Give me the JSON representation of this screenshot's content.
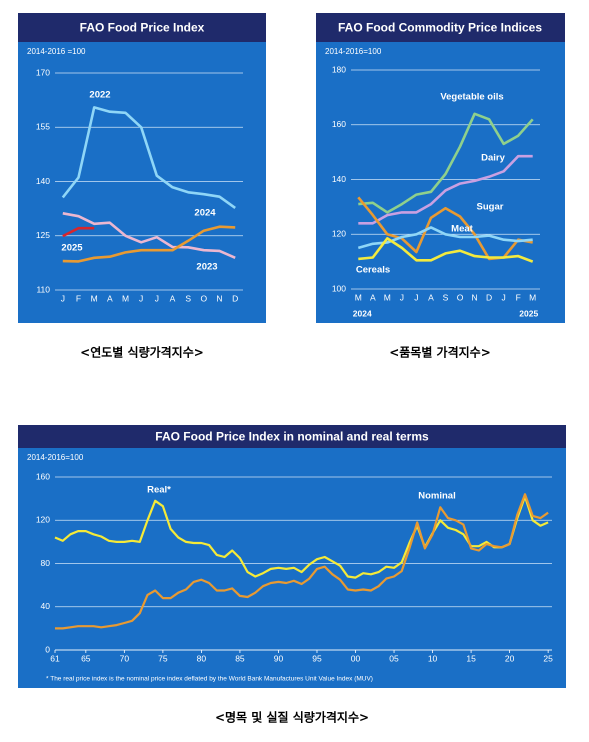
{
  "chart_data": [
    {
      "type": "line",
      "title": "FAO Food Price Index",
      "subtitle": "2014-2016 =100",
      "caption": "<연도별 식량가격지수>",
      "categories": [
        "J",
        "F",
        "M",
        "A",
        "M",
        "J",
        "J",
        "A",
        "S",
        "O",
        "N",
        "D"
      ],
      "ylim": [
        110,
        170
      ],
      "yticks": [
        110,
        125,
        140,
        155,
        170
      ],
      "grid": true,
      "series": [
        {
          "name": "2022",
          "color": "#8fd6f7",
          "values": [
            135.6,
            141.1,
            160.5,
            159.3,
            159.0,
            155.0,
            141.6,
            138.4,
            137.0,
            136.5,
            135.8,
            132.7
          ]
        },
        {
          "name": "2023",
          "color": "#ecb7d0",
          "values": [
            131.2,
            130.4,
            128.3,
            128.6,
            125.0,
            123.2,
            124.6,
            121.9,
            121.8,
            121.0,
            120.8,
            118.9
          ]
        },
        {
          "name": "2024",
          "color": "#e89a32",
          "values": [
            118.0,
            117.9,
            118.9,
            119.2,
            120.4,
            121.0,
            121.0,
            121.0,
            123.6,
            126.4,
            127.5,
            127.3
          ]
        },
        {
          "name": "2025",
          "color": "#d8262c",
          "values": [
            124.9,
            127.1,
            127.1,
            null,
            null,
            null,
            null,
            null,
            null,
            null,
            null,
            null
          ]
        }
      ]
    },
    {
      "type": "line",
      "title": "FAO Food Commodity Price Indices",
      "subtitle": "2014-2016=100",
      "caption": "<품목별 가격지수>",
      "categories": [
        "M",
        "A",
        "M",
        "J",
        "J",
        "A",
        "S",
        "O",
        "N",
        "D",
        "J",
        "F",
        "M"
      ],
      "year_labels": [
        "2024",
        "2025"
      ],
      "ylim": [
        100,
        180
      ],
      "yticks": [
        100,
        120,
        140,
        160,
        180
      ],
      "grid": true,
      "series": [
        {
          "name": "Vegetable oils",
          "color": "#8fd08c",
          "values": [
            131,
            131.5,
            128,
            131,
            134.5,
            135.5,
            142,
            152,
            164,
            162,
            153,
            156,
            162
          ]
        },
        {
          "name": "Dairy",
          "color": "#c9a0e2",
          "values": [
            124,
            124,
            127,
            128,
            128,
            131,
            136,
            138.5,
            139.5,
            141,
            143,
            148.5,
            148.5
          ]
        },
        {
          "name": "Sugar",
          "color": "#e89a32",
          "values": [
            133.5,
            127,
            120,
            118.5,
            113.5,
            126,
            129.5,
            126.5,
            120,
            111,
            111.5,
            118,
            117
          ]
        },
        {
          "name": "Meat",
          "color": "#8fd6f7",
          "values": [
            115,
            116.5,
            117,
            119,
            120,
            122.5,
            120,
            119,
            119,
            119.5,
            118,
            117.5,
            118
          ]
        },
        {
          "name": "Cereals",
          "color": "#f3ea3e",
          "values": [
            111,
            111.5,
            118.5,
            115,
            110.5,
            110.5,
            113,
            114,
            112,
            111.5,
            111.5,
            112,
            110
          ]
        }
      ]
    },
    {
      "type": "line",
      "title": "FAO Food Price Index in nominal and real terms",
      "subtitle": "2014-2016=100",
      "caption": "<명목 및 실질 식량가격지수>",
      "footnote": "* The real price index is the nominal price index deflated by the World Bank Manufactures Unit Value Index (MUV)",
      "x": [
        1961,
        1962,
        1963,
        1964,
        1965,
        1966,
        1967,
        1968,
        1969,
        1970,
        1971,
        1972,
        1973,
        1974,
        1975,
        1976,
        1977,
        1978,
        1979,
        1980,
        1981,
        1982,
        1983,
        1984,
        1985,
        1986,
        1987,
        1988,
        1989,
        1990,
        1991,
        1992,
        1993,
        1994,
        1995,
        1996,
        1997,
        1998,
        1999,
        2000,
        2001,
        2002,
        2003,
        2004,
        2005,
        2006,
        2007,
        2008,
        2009,
        2010,
        2011,
        2012,
        2013,
        2014,
        2015,
        2016,
        2017,
        2018,
        2019,
        2020,
        2021,
        2022,
        2023,
        2024,
        2025
      ],
      "xlim": [
        1961,
        2025.5
      ],
      "xticks": [
        {
          "value": 1961,
          "label": "61"
        },
        {
          "value": 1965,
          "label": "65"
        },
        {
          "value": 1970,
          "label": "70"
        },
        {
          "value": 1975,
          "label": "75"
        },
        {
          "value": 1980,
          "label": "80"
        },
        {
          "value": 1985,
          "label": "85"
        },
        {
          "value": 1990,
          "label": "90"
        },
        {
          "value": 1995,
          "label": "95"
        },
        {
          "value": 2000,
          "label": "00"
        },
        {
          "value": 2005,
          "label": "05"
        },
        {
          "value": 2010,
          "label": "10"
        },
        {
          "value": 2015,
          "label": "15"
        },
        {
          "value": 2020,
          "label": "20"
        },
        {
          "value": 2025,
          "label": "25"
        }
      ],
      "ylim": [
        0,
        160
      ],
      "yticks": [
        0,
        40,
        80,
        120,
        160
      ],
      "grid": true,
      "series": [
        {
          "name": "Real*",
          "color": "#f5ea38",
          "values": [
            104,
            101,
            107,
            110,
            110,
            107,
            105,
            101,
            100,
            100,
            101,
            100,
            120,
            138,
            133,
            112,
            104,
            100,
            99,
            99,
            97,
            88,
            86,
            92,
            85,
            72,
            68,
            71,
            75,
            76,
            75,
            76,
            72,
            79,
            84,
            86,
            82,
            78,
            68,
            67,
            71,
            70,
            72,
            77,
            76,
            81,
            99,
            115,
            95,
            108,
            120,
            113,
            111,
            107,
            96,
            96,
            100,
            95,
            95,
            98,
            122,
            142,
            120,
            115,
            118
          ]
        },
        {
          "name": "Nominal",
          "color": "#e89a32",
          "values": [
            20,
            20,
            21,
            22,
            22,
            22,
            21,
            22,
            23,
            25,
            27,
            34,
            51,
            55,
            48,
            48,
            53,
            56,
            63,
            65,
            62,
            55,
            55,
            57,
            50,
            49,
            53,
            59,
            62,
            63,
            62,
            64,
            61,
            66,
            75,
            77,
            70,
            65,
            56,
            55,
            56,
            55,
            59,
            66,
            68,
            73,
            94,
            118,
            94,
            107,
            132,
            122,
            120,
            116,
            94,
            92,
            98,
            96,
            95,
            98,
            125,
            144,
            124,
            122,
            127
          ]
        }
      ]
    }
  ]
}
